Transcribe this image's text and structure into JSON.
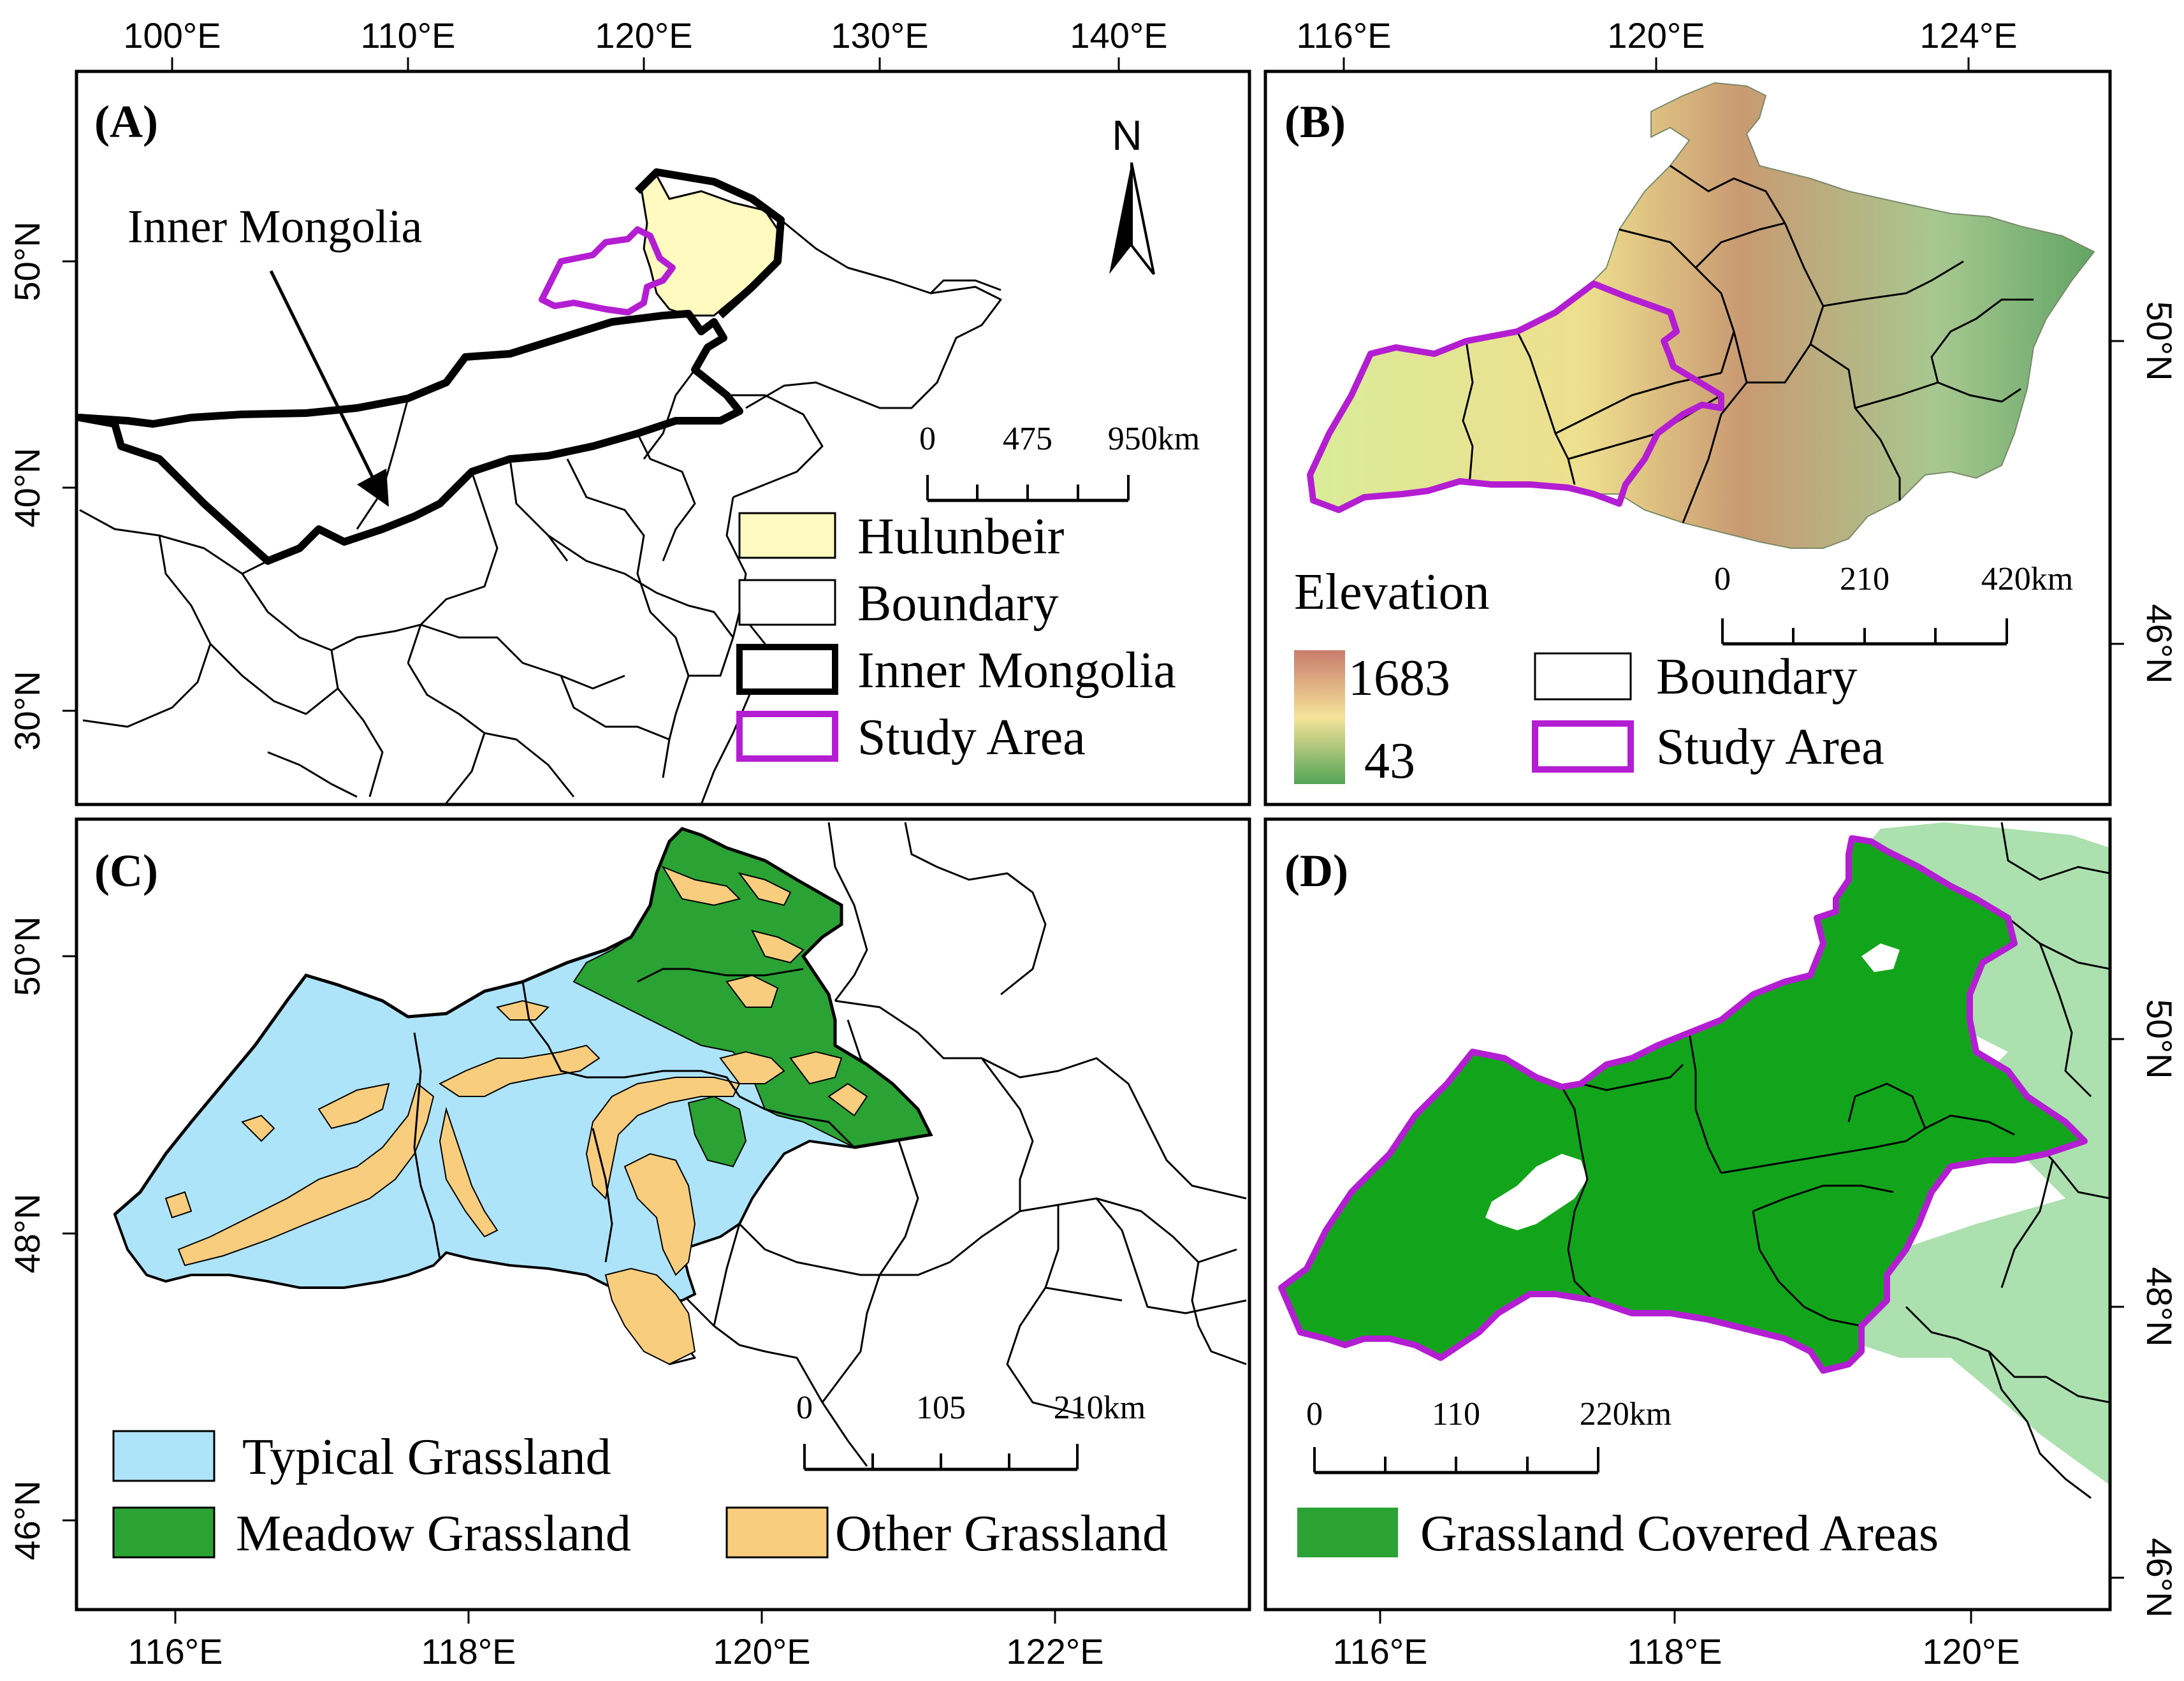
{
  "colors": {
    "hulunbeir": "#fffac0",
    "study_area": "#b41ed2",
    "boundary": "#000000",
    "typical_grassland": "#aee4fa",
    "meadow_grassland": "#2aa234",
    "other_grassland": "#f8cd7e",
    "grassland_covered": "#12a51b",
    "elev_high": "#c87c6c",
    "elev_mid": "#f6e39a",
    "elev_low": "#53a455"
  },
  "panels": {
    "A": {
      "label": "(A)",
      "top_ticks": [
        "100°E",
        "110°E",
        "120°E",
        "130°E",
        "140°E"
      ],
      "left_ticks": [
        "50°N",
        "40°N",
        "30°N"
      ],
      "annotation": "Inner Mongolia",
      "north": "N",
      "scale": [
        "0",
        "475",
        "950km"
      ],
      "legend": [
        "Hulunbeir",
        "Boundary",
        "Inner Mongolia",
        "Study Area"
      ]
    },
    "B": {
      "label": "(B)",
      "top_ticks": [
        "116°E",
        "120°E",
        "124°E"
      ],
      "right_ticks": [
        "50°N",
        "46°N"
      ],
      "elevation_title": "Elevation",
      "elev_max": "1683",
      "elev_min": "43",
      "scale": [
        "0",
        "210",
        "420km"
      ],
      "legend": [
        "Boundary",
        "Study Area"
      ]
    },
    "C": {
      "label": "(C)",
      "bottom_ticks": [
        "116°E",
        "118°E",
        "120°E",
        "122°E"
      ],
      "left_ticks": [
        "50°N",
        "48°N",
        "46°N"
      ],
      "scale": [
        "0",
        "105",
        "210km"
      ],
      "legend": [
        "Typical Grassland",
        "Meadow Grassland",
        "Other Grassland"
      ]
    },
    "D": {
      "label": "(D)",
      "bottom_ticks": [
        "116°E",
        "118°E",
        "120°E"
      ],
      "right_ticks": [
        "50°N",
        "48°N",
        "46°N"
      ],
      "scale": [
        "0",
        "110",
        "220km"
      ],
      "legend": [
        "Grassland Covered Areas"
      ]
    }
  }
}
